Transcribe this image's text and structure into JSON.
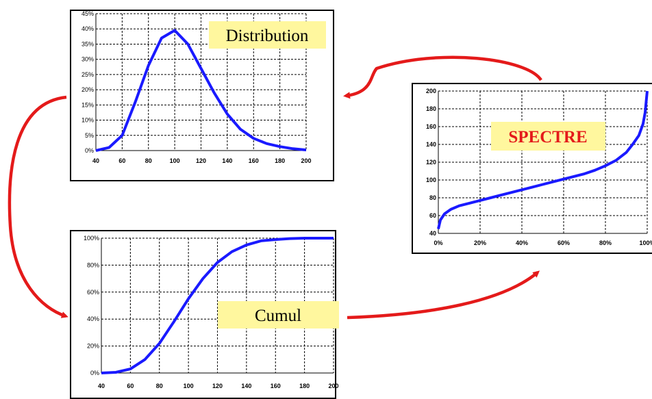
{
  "chart_data": [
    {
      "type": "line",
      "label": "Distribution",
      "x_ticks": [
        "40",
        "60",
        "80",
        "100",
        "120",
        "140",
        "160",
        "180",
        "200"
      ],
      "y_ticks": [
        "0%",
        "5%",
        "10%",
        "15%",
        "20%",
        "25%",
        "30%",
        "35%",
        "40%",
        "45%"
      ],
      "xlim": [
        40,
        200
      ],
      "ylim": [
        0,
        45
      ],
      "grid": true,
      "series": [
        {
          "x": [
            40,
            50,
            60,
            70,
            80,
            90,
            100,
            110,
            120,
            130,
            140,
            150,
            160,
            170,
            180,
            190,
            200
          ],
          "y": [
            0,
            1,
            5,
            16,
            28,
            37,
            39.5,
            35,
            27,
            19,
            12,
            7,
            4,
            2.3,
            1.3,
            0.6,
            0.2
          ]
        }
      ]
    },
    {
      "type": "line",
      "label": "Cumul",
      "x_ticks": [
        "40",
        "60",
        "80",
        "100",
        "120",
        "140",
        "160",
        "180",
        "200"
      ],
      "y_ticks": [
        "0%",
        "20%",
        "40%",
        "60%",
        "80%",
        "100%"
      ],
      "xlim": [
        40,
        200
      ],
      "ylim": [
        0,
        100
      ],
      "grid": true,
      "series": [
        {
          "x": [
            40,
            50,
            60,
            70,
            80,
            90,
            100,
            110,
            120,
            130,
            140,
            150,
            160,
            170,
            180,
            190,
            200
          ],
          "y": [
            0,
            0.5,
            3,
            10,
            22,
            38,
            55,
            70,
            82,
            90,
            95,
            98,
            99,
            99.7,
            100,
            100,
            100
          ]
        }
      ]
    },
    {
      "type": "line",
      "label": "SPECTRE",
      "x_ticks": [
        "0%",
        "20%",
        "40%",
        "60%",
        "80%",
        "100%"
      ],
      "y_ticks": [
        "40",
        "60",
        "80",
        "100",
        "120",
        "140",
        "160",
        "180",
        "200"
      ],
      "xlim": [
        0,
        100
      ],
      "ylim": [
        40,
        200
      ],
      "grid": true,
      "series": [
        {
          "x": [
            0,
            1,
            3,
            6,
            10,
            15,
            20,
            25,
            30,
            35,
            40,
            45,
            50,
            55,
            60,
            65,
            70,
            75,
            80,
            85,
            90,
            93,
            96,
            98,
            99,
            100
          ],
          "y": [
            45,
            55,
            62,
            67,
            71,
            74,
            77,
            80,
            83,
            86,
            89,
            92,
            95,
            98,
            101,
            104,
            107,
            111,
            116,
            122,
            131,
            140,
            150,
            163,
            176,
            200
          ]
        }
      ]
    }
  ],
  "colors": {
    "curve": "#1a1aff",
    "arrow": "#e41a1a",
    "label_bg": "#fff79e",
    "grid": "#000000"
  }
}
